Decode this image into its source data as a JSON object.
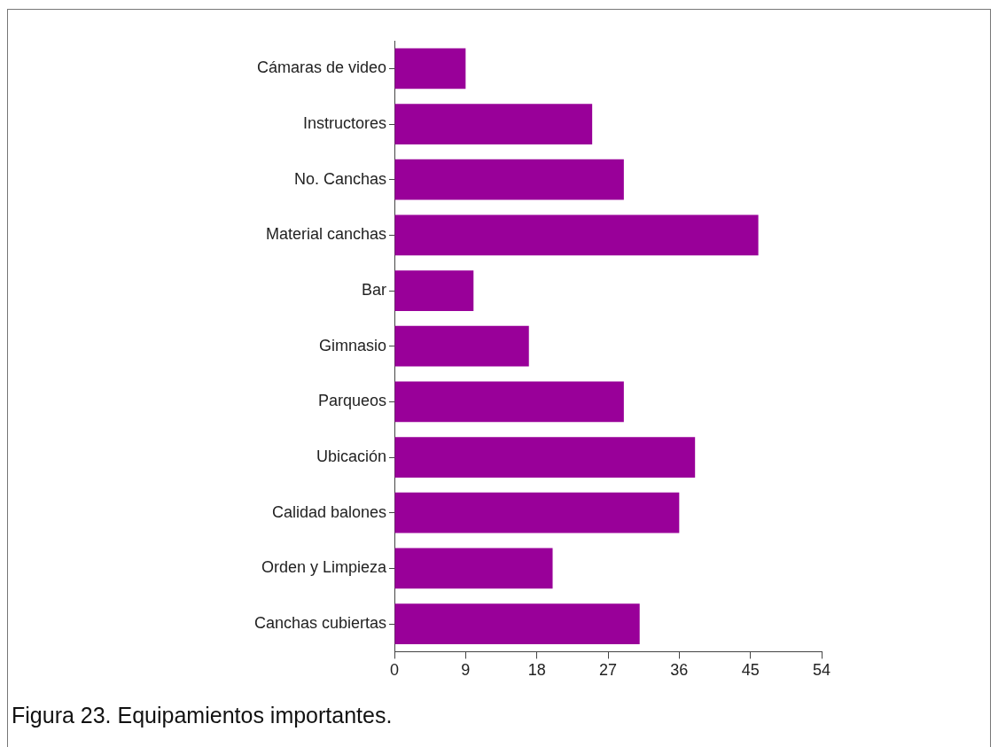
{
  "chart_data": {
    "type": "bar",
    "orientation": "horizontal",
    "categories": [
      "Cámaras de video",
      "Instructores",
      "No. Canchas",
      "Material canchas",
      "Bar",
      "Gimnasio",
      "Parqueos",
      "Ubicación",
      "Calidad balones",
      "Orden y Limpieza",
      "Canchas cubiertas"
    ],
    "values": [
      9,
      25,
      29,
      46,
      10,
      17,
      29,
      38,
      36,
      20,
      31
    ],
    "color": "#990099",
    "xlim": [
      0,
      54
    ],
    "xticks": [
      0,
      9,
      18,
      27,
      36,
      45,
      54
    ],
    "grid": false,
    "legend": false,
    "annotations": [
      "Figura 23. Equipamientos  importantes."
    ]
  }
}
